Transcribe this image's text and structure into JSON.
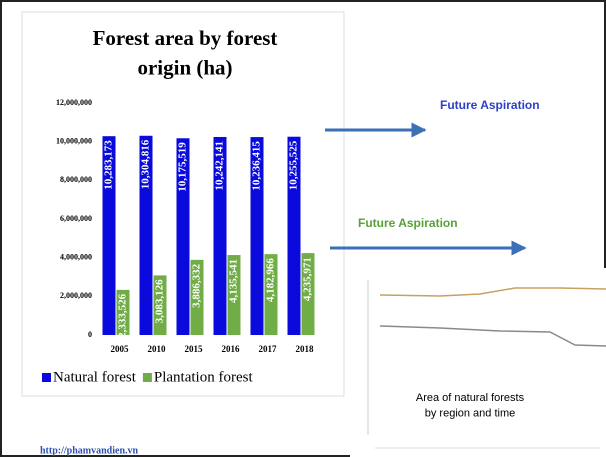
{
  "chart_data": {
    "type": "bar",
    "title": "Forest area by forest origin (ha)",
    "categories": [
      "2005",
      "2010",
      "2015",
      "2016",
      "2017",
      "2018"
    ],
    "series": [
      {
        "name": "Natural forest",
        "color": "#0a0adc",
        "values": [
          10283173,
          10304816,
          10175519,
          10242141,
          10236415,
          10255525
        ],
        "value_labels": [
          "10,283,173",
          "10,304,816",
          "10,175,519",
          "10,242,141",
          "10,236,415",
          "10,255,525"
        ]
      },
      {
        "name": "Plantation forest",
        "color": "#70ad47",
        "values": [
          2333526,
          3083126,
          3886332,
          4135541,
          4182966,
          4235971
        ],
        "value_labels": [
          "2,333,526",
          "3,083,126",
          "3,886,332",
          "4,135,541",
          "4,182,966",
          "4,235,971"
        ]
      }
    ],
    "ylim": [
      0,
      12000000
    ],
    "yticks": [
      0,
      {
        "value": 2000000,
        "label": "2,000,000"
      },
      {
        "value": 4000000,
        "label": "4,000,000"
      },
      {
        "value": 6000000,
        "label": "6,000,000"
      },
      {
        "value": 8000000,
        "label": "8,000,000"
      },
      {
        "value": 10000000,
        "label": "10,000,000"
      },
      {
        "value": 12000000,
        "label": "12,000,000"
      }
    ],
    "legend": "bottom"
  },
  "annotations": {
    "aspiration_1": "Future Aspiration",
    "aspiration_2": "Future Aspiration",
    "inset_caption": "Area of natural forests by region and time",
    "source": "http://phamvandien.vn"
  }
}
